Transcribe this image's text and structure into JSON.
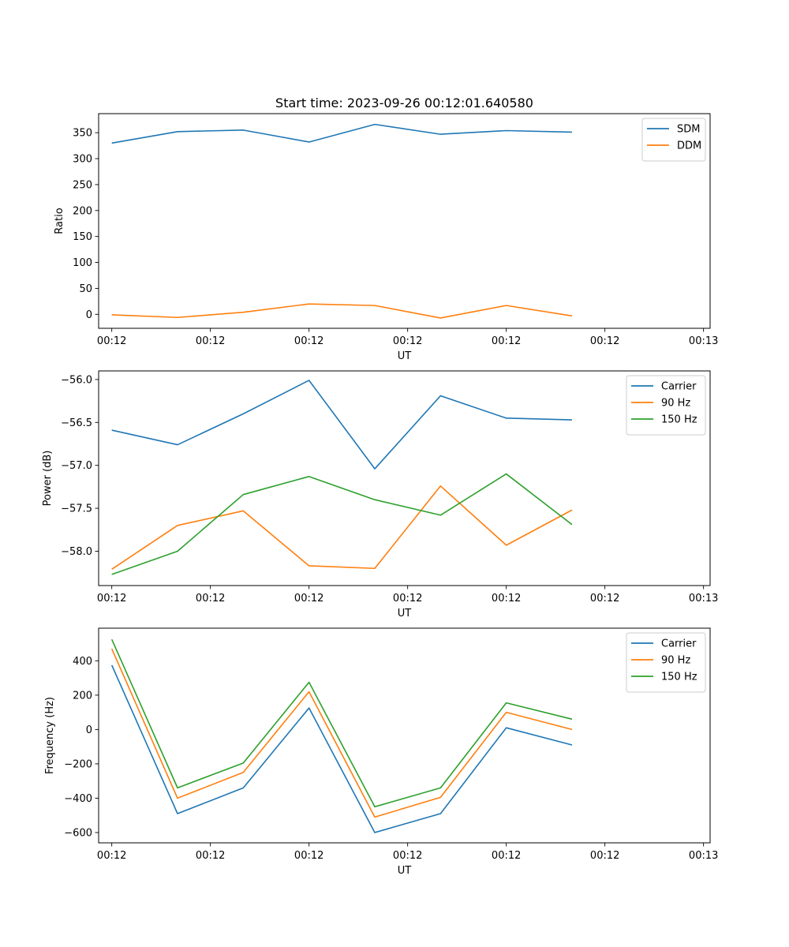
{
  "figure": {
    "title": "Start time: 2023-09-26 00:12:01.640580"
  },
  "colors": {
    "blue": "#1f77b4",
    "orange": "#ff7f0e",
    "green": "#2ca02c"
  },
  "chart_data": [
    {
      "type": "line",
      "title": "Start time: 2023-09-26 00:12:01.640580",
      "xlabel": "UT",
      "ylabel": "Ratio",
      "x": [
        1,
        2,
        3,
        4,
        5,
        6,
        7,
        8
      ],
      "xlim": [
        0.8,
        10.1
      ],
      "xticks": [
        1,
        2.5,
        4,
        5.5,
        7,
        8.5,
        10
      ],
      "xtick_labels": [
        "00:12",
        "00:12",
        "00:12",
        "00:12",
        "00:12",
        "00:12",
        "00:13"
      ],
      "ylim": [
        -26.9,
        386.7
      ],
      "yticks": [
        0,
        50,
        100,
        150,
        200,
        250,
        300,
        350
      ],
      "ytick_labels": [
        "0",
        "50",
        "100",
        "150",
        "200",
        "250",
        "300",
        "350"
      ],
      "legend": "upper right",
      "series": [
        {
          "name": "SDM",
          "color": "blue",
          "values": [
            330,
            352,
            355,
            332,
            366,
            347,
            354,
            351
          ]
        },
        {
          "name": "DDM",
          "color": "orange",
          "values": [
            -1,
            -6,
            4,
            20,
            17,
            -7,
            17,
            -3
          ]
        }
      ]
    },
    {
      "type": "line",
      "xlabel": "UT",
      "ylabel": "Power (dB)",
      "x": [
        1,
        2,
        3,
        4,
        5,
        6,
        7,
        8
      ],
      "xlim": [
        0.8,
        10.1
      ],
      "xticks": [
        1,
        2.5,
        4,
        5.5,
        7,
        8.5,
        10
      ],
      "xtick_labels": [
        "00:12",
        "00:12",
        "00:12",
        "00:12",
        "00:12",
        "00:12",
        "00:13"
      ],
      "ylim": [
        -58.4,
        -55.9
      ],
      "yticks": [
        -58.0,
        -57.5,
        -57.0,
        -56.5,
        -56.0
      ],
      "ytick_labels": [
        "−58.0",
        "−57.5",
        "−57.0",
        "−56.5",
        "−56.0"
      ],
      "legend": "upper right",
      "series": [
        {
          "name": "Carrier",
          "color": "blue",
          "values": [
            -56.59,
            -56.76,
            -56.4,
            -56.01,
            -57.04,
            -56.19,
            -56.45,
            -56.47
          ]
        },
        {
          "name": "90 Hz",
          "color": "orange",
          "values": [
            -58.21,
            -57.7,
            -57.53,
            -58.17,
            -58.2,
            -57.24,
            -57.93,
            -57.52
          ]
        },
        {
          "name": "150 Hz",
          "color": "green",
          "values": [
            -58.27,
            -58.0,
            -57.34,
            -57.13,
            -57.4,
            -57.58,
            -57.1,
            -57.69
          ]
        }
      ]
    },
    {
      "type": "line",
      "xlabel": "UT",
      "ylabel": "Frequency (Hz)",
      "x": [
        1,
        2,
        3,
        4,
        5,
        6,
        7,
        8
      ],
      "xlim": [
        0.8,
        10.1
      ],
      "xticks": [
        1,
        2.5,
        4,
        5.5,
        7,
        8.5,
        10
      ],
      "xtick_labels": [
        "00:12",
        "00:12",
        "00:12",
        "00:12",
        "00:12",
        "00:12",
        "00:13"
      ],
      "ylim": [
        -660,
        590
      ],
      "yticks": [
        -600,
        -400,
        -200,
        0,
        200,
        400
      ],
      "ytick_labels": [
        "−600",
        "−400",
        "−200",
        "0",
        "200",
        "400"
      ],
      "legend": "upper right",
      "series": [
        {
          "name": "Carrier",
          "color": "blue",
          "values": [
            375,
            -490,
            -340,
            125,
            -600,
            -490,
            10,
            -90
          ]
        },
        {
          "name": "90 Hz",
          "color": "orange",
          "values": [
            470,
            -400,
            -250,
            220,
            -510,
            -395,
            100,
            0
          ]
        },
        {
          "name": "150 Hz",
          "color": "green",
          "values": [
            525,
            -340,
            -195,
            275,
            -450,
            -340,
            155,
            60
          ]
        }
      ]
    }
  ]
}
